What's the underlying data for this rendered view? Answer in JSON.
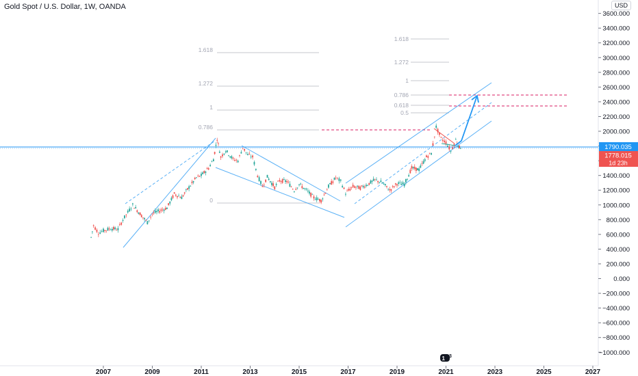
{
  "header": {
    "title": "Gold Spot / U.S. Dollar, 1W, OANDA",
    "currency": "USD"
  },
  "logo": {
    "badge": "3"
  },
  "colors": {
    "bull": "#26a69a",
    "bear": "#ef5350",
    "channel": "#2196f3",
    "fib": "#b2b5be",
    "fibLabel": "#a3a6b3",
    "dashed": "#d81b60",
    "priceLine": "#2196f3",
    "lastLine": "#ef5350"
  },
  "chart_data": {
    "type": "candlestick",
    "x_axis": {
      "ticks": [
        "2007",
        "2009",
        "2011",
        "2013",
        "2015",
        "2017",
        "2019",
        "2021",
        "2023",
        "2025",
        "2027"
      ]
    },
    "y_axis": {
      "range": [
        -1080,
        3720
      ],
      "ticks": [
        "3600.000",
        "3400.000",
        "3200.000",
        "3000.000",
        "2800.000",
        "2600.000",
        "2400.000",
        "2200.000",
        "2000.000",
        "1800.000",
        "1600.000",
        "1400.000",
        "1200.000",
        "1000.000",
        "800.000",
        "600.000",
        "400.000",
        "200.000",
        "0.000",
        "−200.000",
        "−400.000",
        "−600.000",
        "−800.000",
        "−1000.000"
      ]
    },
    "series": [
      {
        "values": [
          [
            2006.5,
            560
          ],
          [
            2006.6,
            720
          ],
          [
            2006.8,
            620
          ],
          [
            2007.0,
            650
          ],
          [
            2007.3,
            680
          ],
          [
            2007.6,
            670
          ],
          [
            2007.8,
            800
          ],
          [
            2008.0,
            900
          ],
          [
            2008.2,
            1000
          ],
          [
            2008.5,
            880
          ],
          [
            2008.8,
            760
          ],
          [
            2009.0,
            880
          ],
          [
            2009.3,
            920
          ],
          [
            2009.6,
            960
          ],
          [
            2009.9,
            1150
          ],
          [
            2010.2,
            1100
          ],
          [
            2010.5,
            1240
          ],
          [
            2010.8,
            1370
          ],
          [
            2011.0,
            1400
          ],
          [
            2011.3,
            1500
          ],
          [
            2011.5,
            1620
          ],
          [
            2011.65,
            1900
          ],
          [
            2011.8,
            1650
          ],
          [
            2012.0,
            1740
          ],
          [
            2012.3,
            1620
          ],
          [
            2012.5,
            1600
          ],
          [
            2012.7,
            1780
          ],
          [
            2012.9,
            1680
          ],
          [
            2013.1,
            1650
          ],
          [
            2013.3,
            1400
          ],
          [
            2013.5,
            1250
          ],
          [
            2013.7,
            1380
          ],
          [
            2014.0,
            1240
          ],
          [
            2014.2,
            1330
          ],
          [
            2014.5,
            1320
          ],
          [
            2014.8,
            1200
          ],
          [
            2015.0,
            1280
          ],
          [
            2015.3,
            1200
          ],
          [
            2015.6,
            1100
          ],
          [
            2015.9,
            1060
          ],
          [
            2016.2,
            1250
          ],
          [
            2016.5,
            1370
          ],
          [
            2016.7,
            1320
          ],
          [
            2016.9,
            1160
          ],
          [
            2017.2,
            1250
          ],
          [
            2017.5,
            1230
          ],
          [
            2017.8,
            1280
          ],
          [
            2018.1,
            1340
          ],
          [
            2018.4,
            1300
          ],
          [
            2018.7,
            1200
          ],
          [
            2019.0,
            1290
          ],
          [
            2019.3,
            1280
          ],
          [
            2019.6,
            1500
          ],
          [
            2019.9,
            1480
          ],
          [
            2020.2,
            1650
          ],
          [
            2020.4,
            1700
          ],
          [
            2020.6,
            2060
          ],
          [
            2020.8,
            1900
          ],
          [
            2021.0,
            1850
          ],
          [
            2021.2,
            1730
          ],
          [
            2021.4,
            1880
          ],
          [
            2021.55,
            1780
          ],
          [
            2021.65,
            1790
          ]
        ]
      }
    ],
    "last_price": "1790.035",
    "current_price": "1778.015",
    "countdown": "1d 23h",
    "fib_left": {
      "levels": [
        "1.618",
        "1.272",
        "1",
        "0.786",
        "0"
      ]
    },
    "fib_right": {
      "levels": [
        "1.618",
        "1.272",
        "1",
        "0.786",
        "0.618",
        "0.5"
      ]
    }
  }
}
